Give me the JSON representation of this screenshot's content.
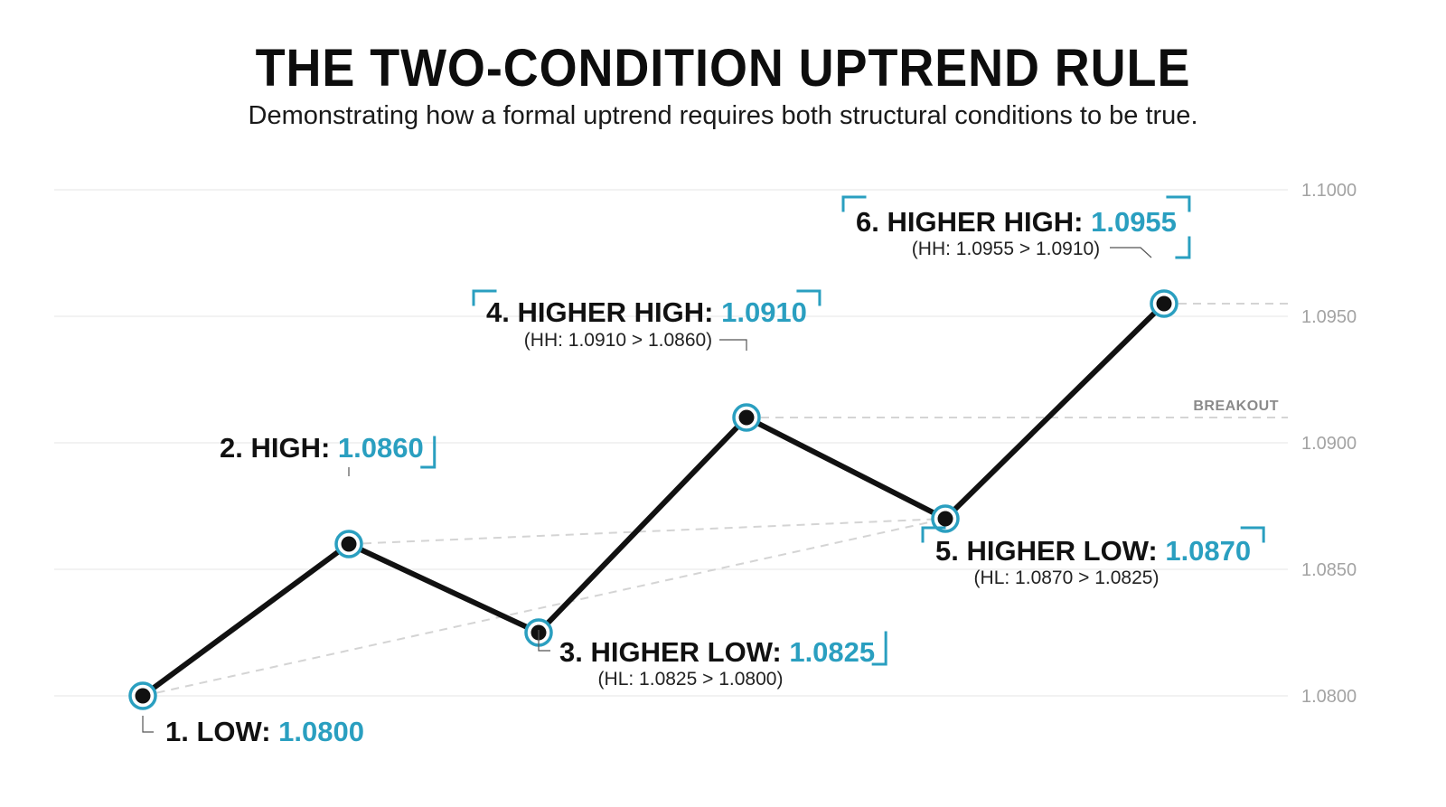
{
  "title": "THE TWO-CONDITION UPTREND RULE",
  "subtitle": "Demonstrating how a formal uptrend requires both structural conditions to be true.",
  "colors": {
    "line": "#111111",
    "accent": "#2a9fc0",
    "grid": "#e6e6e6",
    "guide": "#d4d4d4",
    "tick": "#a3a3a3"
  },
  "chart_data": {
    "type": "line",
    "title": "THE TWO-CONDITION UPTREND RULE",
    "xlabel": "",
    "ylabel": "",
    "ylim": [
      1.08,
      1.1
    ],
    "yticks": [
      "1.1000",
      "1.0950",
      "1.0900",
      "1.0850",
      "1.0800"
    ],
    "ytick_values": [
      1.1,
      1.095,
      1.09,
      1.085,
      1.08
    ],
    "grid": true,
    "series": [
      {
        "values": [
          1.08,
          1.086,
          1.0825,
          1.091,
          1.087,
          1.0955
        ]
      }
    ],
    "annotations": [
      {
        "prefix": "1. LOW: ",
        "value": "1.0800",
        "detail": ""
      },
      {
        "prefix": "2. HIGH: ",
        "value": "1.0860",
        "detail": ""
      },
      {
        "prefix": "3. HIGHER LOW: ",
        "value": "1.0825",
        "detail": "(HL: 1.0825 > 1.0800)"
      },
      {
        "prefix": "4. HIGHER HIGH: ",
        "value": "1.0910",
        "detail": "(HH: 1.0910 > 1.0860)"
      },
      {
        "prefix": "5. HIGHER LOW: ",
        "value": "1.0870",
        "detail": "(HL: 1.0870 > 1.0825)"
      },
      {
        "prefix": "6. HIGHER HIGH: ",
        "value": "1.0955",
        "detail": "(HH: 1.0955 > 1.0910)"
      }
    ],
    "reference_label": "BREAKOUT"
  }
}
